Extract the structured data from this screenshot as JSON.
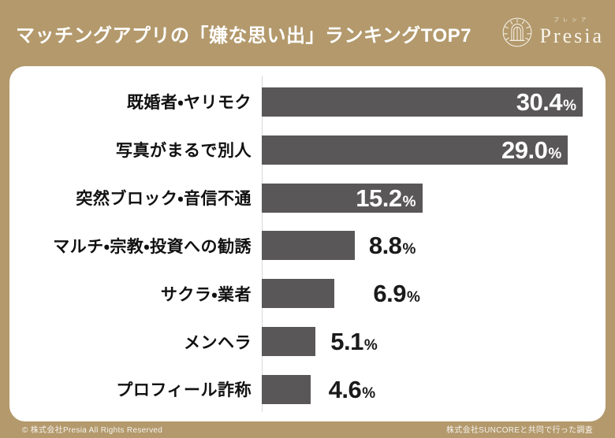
{
  "header": {
    "title": "マッチングアプリの「嫌な思い出」ランキングTOP7",
    "logo": {
      "name": "Presia",
      "kana": "プレシア"
    }
  },
  "chart_data": {
    "type": "bar",
    "orientation": "horizontal",
    "title": "マッチングアプリの「嫌な思い出」ランキングTOP7",
    "categories": [
      "既婚者・ヤリモク",
      "写真がまるで別人",
      "突然ブロック・音信不通",
      "マルチ・宗教・投資への勧誘",
      "サクラ・業者",
      "メンヘラ",
      "プロフィール詐称"
    ],
    "values": [
      30.4,
      29.0,
      15.2,
      8.8,
      6.9,
      5.1,
      4.6
    ],
    "unit": "%",
    "xlim": [
      0,
      32.5
    ],
    "grid": false,
    "legend": "none",
    "bar_color": "#595757",
    "value_label_inside_color": "#ffffff",
    "value_label_outside_color": "#1a1a1a"
  },
  "footer": {
    "left": "© 株式会社Presia All Rights Reserved",
    "right": "株式会社SUNCOREと共同で行った調査"
  },
  "colors": {
    "background": "#b3996c",
    "card": "#ffffff",
    "bar": "#595757",
    "axis_line": "#d9d9d9",
    "header_text": "#ffffff"
  }
}
